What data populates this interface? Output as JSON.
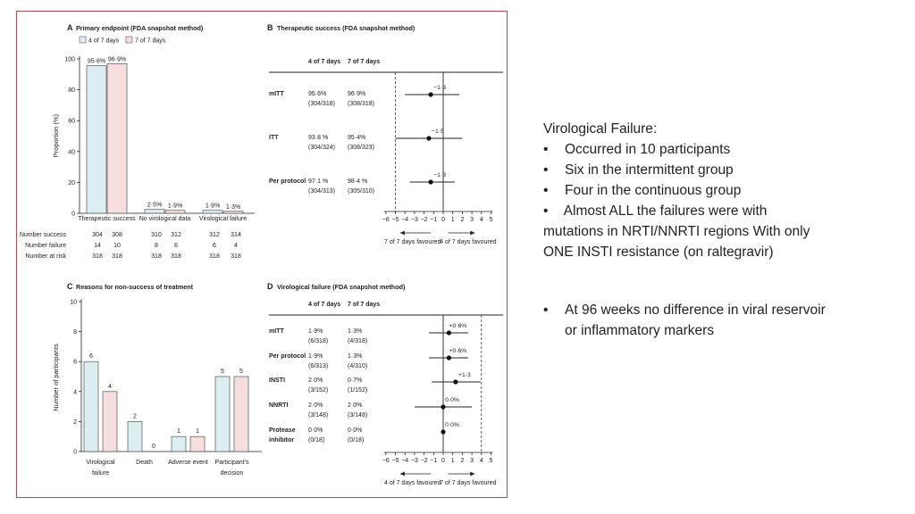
{
  "colors": {
    "frame": "#b04a52",
    "bar1": "#ddeef2",
    "bar2": "#f6dede",
    "text": "#222222"
  },
  "chart_data": [
    {
      "panel_letter": "A",
      "type": "bar",
      "title": "Primary endpoint (FDA snapshot method)",
      "legend": [
        "4 of 7 days",
        "7 of 7 days"
      ],
      "ylabel": "Proportion (%)",
      "ylim": [
        0,
        100
      ],
      "yticks": [
        "0",
        "20",
        "40",
        "60",
        "80",
        "100"
      ],
      "categories": [
        "Therapeutic success",
        "No virological data",
        "Virological failure"
      ],
      "series": [
        {
          "name": "4 of 7 days",
          "values": [
            95.6,
            2.5,
            1.9
          ],
          "labels": [
            "95·6%",
            "2·5%",
            "1·9%"
          ]
        },
        {
          "name": "7 of 7 days",
          "values": [
            96.9,
            1.9,
            1.3
          ],
          "labels": [
            "96·9%",
            "1·9%",
            "1·3%"
          ]
        }
      ],
      "table": {
        "rows": [
          {
            "label": "Number success",
            "values": [
              "304",
              "308",
              "310",
              "312",
              "312",
              "314"
            ]
          },
          {
            "label": "Number failure",
            "values": [
              "14",
              "10",
              "8",
              "6",
              "6",
              "4"
            ]
          },
          {
            "label": "Number at risk",
            "values": [
              "318",
              "318",
              "318",
              "318",
              "318",
              "318"
            ]
          }
        ]
      }
    },
    {
      "panel_letter": "B",
      "type": "forest",
      "title": "Therapeutic success (FDA snapshot method)",
      "col_headers": [
        "4 of 7 days",
        "7 of 7 days"
      ],
      "xlim": [
        -6,
        5
      ],
      "xticks": [
        "−6",
        "−5",
        "−4",
        "−3",
        "−2",
        "−1",
        "0",
        "1",
        "2",
        "3",
        "4",
        "5"
      ],
      "reference_line": -5,
      "xlabel_left": "7 of 7 days favoured",
      "xlabel_right": "4 of 7 days favoured",
      "rows": [
        {
          "label": "mITT",
          "a": "95·6%",
          "a_n": "(304/318)",
          "b": "96·9%",
          "b_n": "(308/318)",
          "estimate": -1.3,
          "lo": -4.0,
          "hi": 1.7,
          "est_label": "−1·3"
        },
        {
          "label": "ITT",
          "a": "93·8 %",
          "a_n": "(304/324)",
          "b": "95·4%",
          "b_n": "(308/323)",
          "estimate": -1.5,
          "lo": -5.0,
          "hi": 2.0,
          "est_label": "−1·5"
        },
        {
          "label": "Per protocol",
          "a": "97·1 %",
          "a_n": "(304/313)",
          "b": "98·4 %",
          "b_n": "(305/310)",
          "estimate": -1.3,
          "lo": -3.5,
          "hi": 1.2,
          "est_label": "−1·3"
        }
      ]
    },
    {
      "panel_letter": "C",
      "type": "bar",
      "title": "Reasons for non-success of treatment",
      "ylabel": "Number of participants",
      "ylim": [
        0,
        10
      ],
      "yticks": [
        "0",
        "2",
        "4",
        "6",
        "8",
        "10"
      ],
      "categories": [
        [
          "Virological",
          "failure"
        ],
        [
          "Death"
        ],
        [
          "Adverse event"
        ],
        [
          "Participant's",
          "decision"
        ]
      ],
      "series": [
        {
          "name": "4 of 7 days",
          "values": [
            6,
            2,
            1,
            5
          ],
          "labels": [
            "6",
            "2",
            "1",
            "5"
          ]
        },
        {
          "name": "7 of 7 days",
          "values": [
            4,
            0,
            1,
            5
          ],
          "labels": [
            "4",
            "0",
            "1",
            "5"
          ]
        }
      ]
    },
    {
      "panel_letter": "D",
      "type": "forest",
      "title": "Virological failure (FDA snapshot method)",
      "col_headers": [
        "4 of 7 days",
        "7 of 7 days"
      ],
      "xlim": [
        -6,
        5
      ],
      "xticks": [
        "−6",
        "−5",
        "−4",
        "−3",
        "−2",
        "−1",
        "0",
        "1",
        "2",
        "3",
        "4",
        "5"
      ],
      "reference_line": 4,
      "xlabel_left": "4 of 7 days favoured",
      "xlabel_right": "7 of 7 days favoured",
      "rows": [
        {
          "label": "mITT",
          "a": "1·9%",
          "a_n": "(6/318)",
          "b": "1·3%",
          "b_n": "(4/318)",
          "estimate": 0.6,
          "lo": -1.5,
          "hi": 2.6,
          "est_label": "+0·6%"
        },
        {
          "label": "Per protocol",
          "a": "1·9%",
          "a_n": "(6/313)",
          "b": "1·3%",
          "b_n": "(4/310)",
          "estimate": 0.6,
          "lo": -1.5,
          "hi": 2.6,
          "est_label": "+0·6%"
        },
        {
          "label": "INSTI",
          "a": "2·0%",
          "a_n": "(3/152)",
          "b": "0·7%",
          "b_n": "(1/152)",
          "estimate": 1.3,
          "lo": -1.2,
          "hi": 3.9,
          "est_label": "+1·3"
        },
        {
          "label": "NNRTI",
          "a": "2·0%",
          "a_n": "(3/148)",
          "b": "2·0%",
          "b_n": "(3/148)",
          "estimate": 0.0,
          "lo": -3.0,
          "hi": 3.0,
          "est_label": "0·0%"
        },
        {
          "label": "Protease inhibitor",
          "label_lines": [
            "Protease",
            "inhibitor"
          ],
          "a": "0·0%",
          "a_n": "(0/18)",
          "b": "0·0%",
          "b_n": "(0/18)",
          "estimate": 0.0,
          "lo": 0.0,
          "hi": 0.0,
          "est_label": "0·0%"
        }
      ]
    }
  ],
  "notes": {
    "section1": {
      "heading": "Virological Failure:",
      "items": [
        "Occurred in 10 participants",
        "Six in the intermittent group",
        "Four in the continuous group"
      ]
    },
    "section2": {
      "bullet": "•",
      "text": "Almost ALL the failures were with mutations in NRTI/NNRTI regions With only ONE INSTI resistance (on raltegravir)"
    },
    "section3": {
      "bullet": "•",
      "text": "At 96 weeks  no difference in viral reservoir or inflammatory markers"
    }
  }
}
